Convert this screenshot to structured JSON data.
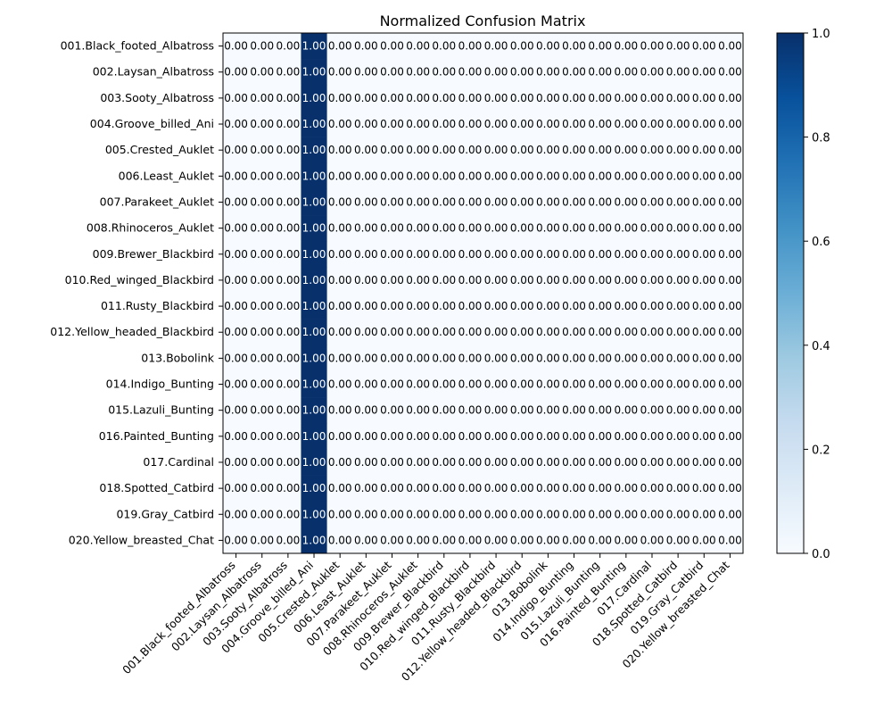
{
  "chart_data": {
    "type": "heatmap",
    "title": "Normalized Confusion Matrix",
    "classes": [
      "001.Black_footed_Albatross",
      "002.Laysan_Albatross",
      "003.Sooty_Albatross",
      "004.Groove_billed_Ani",
      "005.Crested_Auklet",
      "006.Least_Auklet",
      "007.Parakeet_Auklet",
      "008.Rhinoceros_Auklet",
      "009.Brewer_Blackbird",
      "010.Red_winged_Blackbird",
      "011.Rusty_Blackbird",
      "012.Yellow_headed_Blackbird",
      "013.Bobolink",
      "014.Indigo_Bunting",
      "015.Lazuli_Bunting",
      "016.Painted_Bunting",
      "017.Cardinal",
      "018.Spotted_Catbird",
      "019.Gray_Catbird",
      "020.Yellow_breasted_Chat"
    ],
    "predicted_column_index": 3,
    "cell_value_format": "0.00",
    "note_values": "Every row: 1.00 in column 004.Groove_billed_Ani, 0.00 elsewhere",
    "colorbar": {
      "colormap": "Blues",
      "range": [
        0,
        1
      ],
      "ticks": [
        "0.0",
        "0.2",
        "0.4",
        "0.6",
        "0.8",
        "1.0"
      ]
    }
  }
}
